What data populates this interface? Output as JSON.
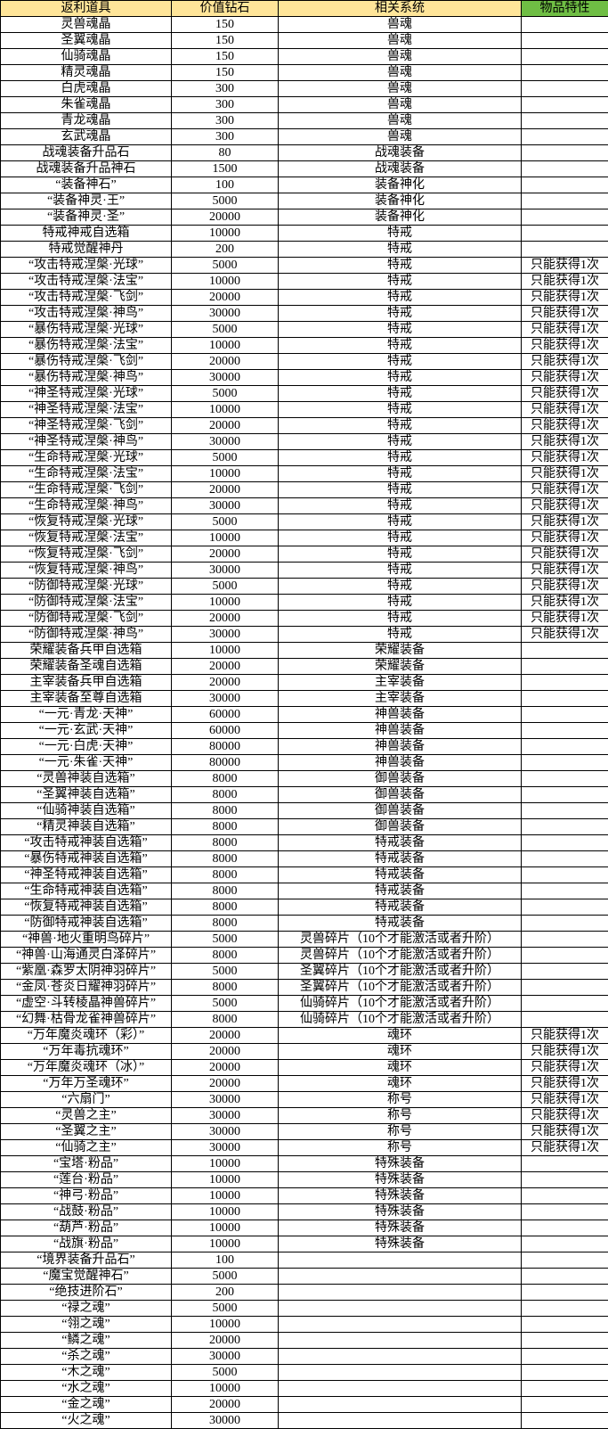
{
  "colors": {
    "header_bg": "#FFE599",
    "trait_header_bg": "#6FBE44",
    "grid_border": "#000000",
    "text": "#000000"
  },
  "table": {
    "headers": [
      {
        "id": "item",
        "label": "返利道具"
      },
      {
        "id": "value",
        "label": "价值钻石"
      },
      {
        "id": "system",
        "label": "相关系统"
      },
      {
        "id": "trait",
        "label": "物品特性"
      }
    ],
    "rows": [
      [
        "灵兽魂晶",
        "150",
        "兽魂",
        ""
      ],
      [
        "圣翼魂晶",
        "150",
        "兽魂",
        ""
      ],
      [
        "仙骑魂晶",
        "150",
        "兽魂",
        ""
      ],
      [
        "精灵魂晶",
        "150",
        "兽魂",
        ""
      ],
      [
        "白虎魂晶",
        "300",
        "兽魂",
        ""
      ],
      [
        "朱雀魂晶",
        "300",
        "兽魂",
        ""
      ],
      [
        "青龙魂晶",
        "300",
        "兽魂",
        ""
      ],
      [
        "玄武魂晶",
        "300",
        "兽魂",
        ""
      ],
      [
        "战魂装备升品石",
        "80",
        "战魂装备",
        ""
      ],
      [
        "战魂装备升品神石",
        "1500",
        "战魂装备",
        ""
      ],
      [
        "“装备神石”",
        "100",
        "装备神化",
        ""
      ],
      [
        "“装备神灵·王”",
        "5000",
        "装备神化",
        ""
      ],
      [
        "“装备神灵·圣”",
        "20000",
        "装备神化",
        ""
      ],
      [
        "特戒神戒自选箱",
        "10000",
        "特戒",
        ""
      ],
      [
        "特戒觉醒神丹",
        "200",
        "特戒",
        ""
      ],
      [
        "“攻击特戒涅槃·光球”",
        "5000",
        "特戒",
        "只能获得1次"
      ],
      [
        "“攻击特戒涅槃·法宝”",
        "10000",
        "特戒",
        "只能获得1次"
      ],
      [
        "“攻击特戒涅槃·飞剑”",
        "20000",
        "特戒",
        "只能获得1次"
      ],
      [
        "“攻击特戒涅槃·神鸟”",
        "30000",
        "特戒",
        "只能获得1次"
      ],
      [
        "“暴伤特戒涅槃·光球”",
        "5000",
        "特戒",
        "只能获得1次"
      ],
      [
        "“暴伤特戒涅槃·法宝”",
        "10000",
        "特戒",
        "只能获得1次"
      ],
      [
        "“暴伤特戒涅槃·飞剑”",
        "20000",
        "特戒",
        "只能获得1次"
      ],
      [
        "“暴伤特戒涅槃·神鸟”",
        "30000",
        "特戒",
        "只能获得1次"
      ],
      [
        "“神圣特戒涅槃·光球”",
        "5000",
        "特戒",
        "只能获得1次"
      ],
      [
        "“神圣特戒涅槃·法宝”",
        "10000",
        "特戒",
        "只能获得1次"
      ],
      [
        "“神圣特戒涅槃·飞剑”",
        "20000",
        "特戒",
        "只能获得1次"
      ],
      [
        "“神圣特戒涅槃·神鸟”",
        "30000",
        "特戒",
        "只能获得1次"
      ],
      [
        "“生命特戒涅槃·光球”",
        "5000",
        "特戒",
        "只能获得1次"
      ],
      [
        "“生命特戒涅槃·法宝”",
        "10000",
        "特戒",
        "只能获得1次"
      ],
      [
        "“生命特戒涅槃·飞剑”",
        "20000",
        "特戒",
        "只能获得1次"
      ],
      [
        "“生命特戒涅槃·神鸟”",
        "30000",
        "特戒",
        "只能获得1次"
      ],
      [
        "“恢复特戒涅槃·光球”",
        "5000",
        "特戒",
        "只能获得1次"
      ],
      [
        "“恢复特戒涅槃·法宝”",
        "10000",
        "特戒",
        "只能获得1次"
      ],
      [
        "“恢复特戒涅槃·飞剑”",
        "20000",
        "特戒",
        "只能获得1次"
      ],
      [
        "“恢复特戒涅槃·神鸟”",
        "30000",
        "特戒",
        "只能获得1次"
      ],
      [
        "“防御特戒涅槃·光球”",
        "5000",
        "特戒",
        "只能获得1次"
      ],
      [
        "“防御特戒涅槃·法宝”",
        "10000",
        "特戒",
        "只能获得1次"
      ],
      [
        "“防御特戒涅槃·飞剑”",
        "20000",
        "特戒",
        "只能获得1次"
      ],
      [
        "“防御特戒涅槃·神鸟”",
        "30000",
        "特戒",
        "只能获得1次"
      ],
      [
        "荣耀装备兵甲自选箱",
        "10000",
        "荣耀装备",
        ""
      ],
      [
        "荣耀装备圣魂自选箱",
        "20000",
        "荣耀装备",
        ""
      ],
      [
        "主宰装备兵甲自选箱",
        "20000",
        "主宰装备",
        ""
      ],
      [
        "主宰装备至尊自选箱",
        "30000",
        "主宰装备",
        ""
      ],
      [
        "“一元·青龙·天神”",
        "60000",
        "神兽装备",
        ""
      ],
      [
        "“一元·玄武·天神”",
        "60000",
        "神兽装备",
        ""
      ],
      [
        "“一元·白虎·天神”",
        "80000",
        "神兽装备",
        ""
      ],
      [
        "“一元·朱雀·天神”",
        "80000",
        "神兽装备",
        ""
      ],
      [
        "“灵兽神装自选箱”",
        "8000",
        "御兽装备",
        ""
      ],
      [
        "“圣翼神装自选箱”",
        "8000",
        "御兽装备",
        ""
      ],
      [
        "“仙骑神装自选箱”",
        "8000",
        "御兽装备",
        ""
      ],
      [
        "“精灵神装自选箱”",
        "8000",
        "御兽装备",
        ""
      ],
      [
        "“攻击特戒神装自选箱”",
        "8000",
        "特戒装备",
        ""
      ],
      [
        "“暴伤特戒神装自选箱”",
        "8000",
        "特戒装备",
        ""
      ],
      [
        "“神圣特戒神装自选箱”",
        "8000",
        "特戒装备",
        ""
      ],
      [
        "“生命特戒神装自选箱”",
        "8000",
        "特戒装备",
        ""
      ],
      [
        "“恢复特戒神装自选箱”",
        "8000",
        "特戒装备",
        ""
      ],
      [
        "“防御特戒神装自选箱”",
        "8000",
        "特戒装备",
        ""
      ],
      [
        "“神兽·地火重明鸟碎片”",
        "5000",
        "灵兽碎片（10个才能激活或者升阶）",
        ""
      ],
      [
        "“神兽·山海通灵白泽碎片”",
        "8000",
        "灵兽碎片（10个才能激活或者升阶）",
        ""
      ],
      [
        "“紫凰·森罗太阴神羽碎片”",
        "5000",
        "圣翼碎片（10个才能激活或者升阶）",
        ""
      ],
      [
        "“金凤·苍炎日耀神羽碎片”",
        "8000",
        "圣翼碎片（10个才能激活或者升阶）",
        ""
      ],
      [
        "“虚空·斗转棱晶神兽碎片”",
        "5000",
        "仙骑碎片（10个才能激活或者升阶）",
        ""
      ],
      [
        "“幻舞·枯骨龙雀神兽碎片”",
        "8000",
        "仙骑碎片（10个才能激活或者升阶）",
        ""
      ],
      [
        "“万年魔炎魂环（彩）”",
        "20000",
        "魂环",
        "只能获得1次"
      ],
      [
        "“万年毒抗魂环”",
        "20000",
        "魂环",
        "只能获得1次"
      ],
      [
        "“万年魔炎魂环（冰）”",
        "20000",
        "魂环",
        "只能获得1次"
      ],
      [
        "“万年万圣魂环”",
        "20000",
        "魂环",
        "只能获得1次"
      ],
      [
        "“六扇门”",
        "30000",
        "称号",
        "只能获得1次"
      ],
      [
        "“灵兽之主”",
        "30000",
        "称号",
        "只能获得1次"
      ],
      [
        "“圣翼之主”",
        "30000",
        "称号",
        "只能获得1次"
      ],
      [
        "“仙骑之主”",
        "30000",
        "称号",
        "只能获得1次"
      ],
      [
        "“宝塔·粉品”",
        "10000",
        "特殊装备",
        ""
      ],
      [
        "“莲台·粉品”",
        "10000",
        "特殊装备",
        ""
      ],
      [
        "“神弓·粉品”",
        "10000",
        "特殊装备",
        ""
      ],
      [
        "“战鼓·粉品”",
        "10000",
        "特殊装备",
        ""
      ],
      [
        "“葫芦·粉品”",
        "10000",
        "特殊装备",
        ""
      ],
      [
        "“战旗·粉品”",
        "10000",
        "特殊装备",
        ""
      ],
      [
        "“境界装备升品石”",
        "100",
        "",
        ""
      ],
      [
        "“魔宝觉醒神石”",
        "5000",
        "",
        ""
      ],
      [
        "“绝技进阶石”",
        "200",
        "",
        ""
      ],
      [
        "“禄之魂”",
        "5000",
        "",
        ""
      ],
      [
        "“翎之魂”",
        "10000",
        "",
        ""
      ],
      [
        "“鳞之魂”",
        "20000",
        "",
        ""
      ],
      [
        "“杀之魂”",
        "30000",
        "",
        ""
      ],
      [
        "“木之魂”",
        "5000",
        "",
        ""
      ],
      [
        "“水之魂”",
        "10000",
        "",
        ""
      ],
      [
        "“金之魂”",
        "20000",
        "",
        ""
      ],
      [
        "“火之魂”",
        "30000",
        "",
        ""
      ]
    ]
  }
}
